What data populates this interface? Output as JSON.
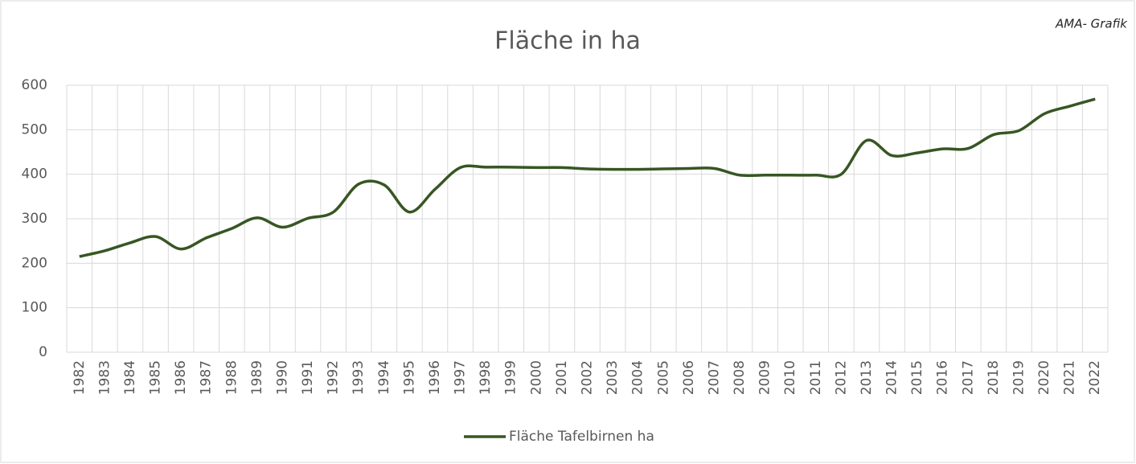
{
  "chart_data": {
    "type": "line",
    "title": "Fläche in ha",
    "annotation": "AMA- Grafik",
    "categories": [
      "1982",
      "1983",
      "1984",
      "1985",
      "1986",
      "1987",
      "1988",
      "1989",
      "1990",
      "1991",
      "1992",
      "1993",
      "1994",
      "1995",
      "1996",
      "1997",
      "1998",
      "1999",
      "2000",
      "2001",
      "2002",
      "2003",
      "2004",
      "2005",
      "2006",
      "2007",
      "2008",
      "2009",
      "2010",
      "2011",
      "2012",
      "2013",
      "2014",
      "2015",
      "2016",
      "2017",
      "2018",
      "2019",
      "2020",
      "2021",
      "2022"
    ],
    "series": [
      {
        "name": "Fläche Tafelbirnen ha",
        "color": "#375623",
        "values": [
          215,
          228,
          246,
          260,
          232,
          257,
          278,
          302,
          281,
          301,
          315,
          378,
          376,
          315,
          366,
          415,
          416,
          416,
          415,
          415,
          412,
          411,
          411,
          412,
          413,
          413,
          398,
          398,
          398,
          398,
          400,
          476,
          442,
          448,
          457,
          458,
          489,
          498,
          536,
          553,
          569
        ]
      }
    ],
    "ylim": [
      0,
      600
    ],
    "yticks": [
      0,
      100,
      200,
      300,
      400,
      500,
      600
    ],
    "grid": true,
    "smooth": true,
    "legend": "bottom"
  }
}
